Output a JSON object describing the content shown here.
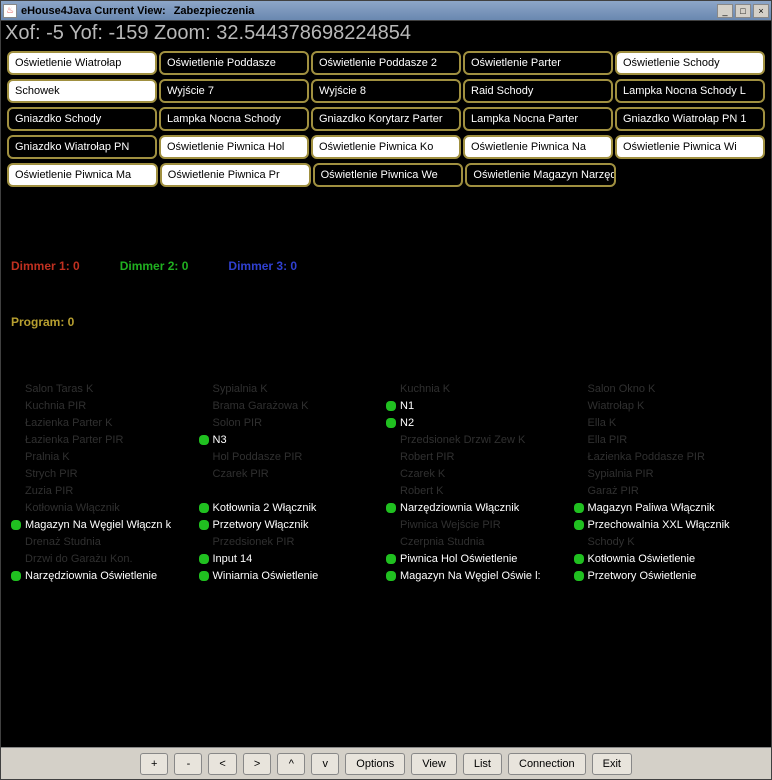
{
  "window": {
    "title_left": "eHouse4Java Current View:",
    "title_right": "Zabezpieczenia"
  },
  "status": {
    "xof_label": "Xof:",
    "xof": "-5",
    "yof_label": "Yof:",
    "yof": "-159",
    "zoom_label": "Zoom:",
    "zoom": "32.544378698224854"
  },
  "grid": {
    "rows": [
      [
        {
          "label": "Oświetlenie Wiatrołap",
          "inverted": true
        },
        {
          "label": "Oświetlenie Poddasze",
          "inverted": false
        },
        {
          "label": "Oświetlenie Poddasze 2",
          "inverted": false
        },
        {
          "label": "Oświetlenie Parter",
          "inverted": false
        },
        {
          "label": "Oświetlenie Schody",
          "inverted": true
        }
      ],
      [
        {
          "label": "Schowek",
          "inverted": true
        },
        {
          "label": "Wyjście 7",
          "inverted": false
        },
        {
          "label": "Wyjście 8",
          "inverted": false
        },
        {
          "label": "Raid Schody",
          "inverted": false
        },
        {
          "label": "Lampka Nocna Schody L",
          "inverted": false
        }
      ],
      [
        {
          "label": "Gniazdko Schody",
          "inverted": false
        },
        {
          "label": "Lampka Nocna Schody",
          "inverted": false
        },
        {
          "label": "Gniazdko Korytarz Parter",
          "inverted": false
        },
        {
          "label": "Lampka Nocna Parter",
          "inverted": false
        },
        {
          "label": "Gniazdko Wiatrołap PN 1",
          "inverted": false
        }
      ],
      [
        {
          "label": "Gniazdko Wiatrołap PN",
          "inverted": false
        },
        {
          "label": "Oświetlenie Piwnica Hol",
          "inverted": true
        },
        {
          "label": "Oświetlenie Piwnica Ko",
          "inverted": true
        },
        {
          "label": "Oświetlenie Piwnica Na",
          "inverted": true
        },
        {
          "label": "Oświetlenie Piwnica Wi",
          "inverted": true
        }
      ],
      [
        {
          "label": "Oświetlenie Piwnica Ma",
          "inverted": true
        },
        {
          "label": "Oświetlenie Piwnica Pr",
          "inverted": true
        },
        {
          "label": "Oświetlenie Piwnica We",
          "inverted": false
        },
        {
          "label": "Oświetlenie Magazyn Narzędzia",
          "inverted": false
        },
        {
          "label": "",
          "empty": true
        }
      ]
    ]
  },
  "dimmers": {
    "d1": "Dimmer 1: 0",
    "d2": "Dimmer 2: 0",
    "d3": "Dimmer 3: 0"
  },
  "program": "Program: 0",
  "sensors": {
    "columns": [
      [
        {
          "label": "Salon Taras K",
          "dot": false,
          "bright": false
        },
        {
          "label": "Kuchnia PIR",
          "dot": false,
          "bright": false
        },
        {
          "label": "Łazienka Parter K",
          "dot": false,
          "bright": false
        },
        {
          "label": "Łazienka Parter PIR",
          "dot": false,
          "bright": false
        },
        {
          "label": "Pralnia K",
          "dot": false,
          "bright": false
        },
        {
          "label": "Strych PIR",
          "dot": false,
          "bright": false
        },
        {
          "label": "Zuzia PIR",
          "dot": false,
          "bright": false
        },
        {
          "label": "Kotłownia Włącznik",
          "dot": false,
          "bright": false
        },
        {
          "label": "Magazyn Na Węgiel Włączn k",
          "dot": true,
          "bright": true
        },
        {
          "label": "Drenaż Studnia",
          "dot": false,
          "bright": false
        },
        {
          "label": "Drzwi do Garażu Kon.",
          "dot": false,
          "bright": false
        },
        {
          "label": "Narzędziownia Oświetlenie",
          "dot": true,
          "bright": true
        }
      ],
      [
        {
          "label": "Sypialnia K",
          "dot": false,
          "bright": false
        },
        {
          "label": "Brama Garażowa K",
          "dot": false,
          "bright": false
        },
        {
          "label": "Solon PIR",
          "dot": false,
          "bright": false
        },
        {
          "label": "N3",
          "dot": true,
          "bright": true
        },
        {
          "label": "Hol Poddasze PIR",
          "dot": false,
          "bright": false
        },
        {
          "label": "Czarek PIR",
          "dot": false,
          "bright": false
        },
        {
          "label": "",
          "dot": false,
          "bright": false
        },
        {
          "label": "Kotłownia 2 Włącznik",
          "dot": true,
          "bright": true
        },
        {
          "label": "Przetwory Włącznik",
          "dot": true,
          "bright": true
        },
        {
          "label": "Przedsionek PIR",
          "dot": false,
          "bright": false
        },
        {
          "label": "Input 14",
          "dot": true,
          "bright": true
        },
        {
          "label": "Winiarnia Oświetlenie",
          "dot": true,
          "bright": true
        }
      ],
      [
        {
          "label": "Kuchnia K",
          "dot": false,
          "bright": false
        },
        {
          "label": "N1",
          "dot": true,
          "bright": true
        },
        {
          "label": "N2",
          "dot": true,
          "bright": true
        },
        {
          "label": "Przedsionek Drzwi Zew K",
          "dot": false,
          "bright": false
        },
        {
          "label": "Robert PIR",
          "dot": false,
          "bright": false
        },
        {
          "label": "Czarek K",
          "dot": false,
          "bright": false
        },
        {
          "label": "Robert K",
          "dot": false,
          "bright": false
        },
        {
          "label": "Narzędziownia Włącznik",
          "dot": true,
          "bright": true
        },
        {
          "label": "Piwnica Wejście PIR",
          "dot": false,
          "bright": false
        },
        {
          "label": "Czerpnia Studnia",
          "dot": false,
          "bright": false
        },
        {
          "label": "Piwnica Hol Oświetlenie",
          "dot": true,
          "bright": true
        },
        {
          "label": "Magazyn Na Węgiel Oświe l:",
          "dot": true,
          "bright": true
        }
      ],
      [
        {
          "label": "Salon Okno K",
          "dot": false,
          "bright": false
        },
        {
          "label": "Wiatrołap K",
          "dot": false,
          "bright": false
        },
        {
          "label": "Ella K",
          "dot": false,
          "bright": false
        },
        {
          "label": "Ella PIR",
          "dot": false,
          "bright": false
        },
        {
          "label": "Łazienka Poddasze PIR",
          "dot": false,
          "bright": false
        },
        {
          "label": "Sypialnia PIR",
          "dot": false,
          "bright": false
        },
        {
          "label": "Garaż PIR",
          "dot": false,
          "bright": false
        },
        {
          "label": "Magazyn Paliwa Włącznik",
          "dot": true,
          "bright": true
        },
        {
          "label": "Przechowalnia XXL Włącznik",
          "dot": true,
          "bright": true
        },
        {
          "label": "Schody K",
          "dot": false,
          "bright": false
        },
        {
          "label": "Kotłownia Oświetlenie",
          "dot": true,
          "bright": true
        },
        {
          "label": "Przetwory Oświetlenie",
          "dot": true,
          "bright": true
        }
      ]
    ]
  },
  "bottom": {
    "plus": "+",
    "minus": "-",
    "left": "<",
    "right": ">",
    "up": "^",
    "down": "v",
    "options": "Options",
    "view": "View",
    "list": "List",
    "connection": "Connection",
    "exit": "Exit"
  },
  "colors": {
    "accent_border": "#a09040",
    "bg": "#000000",
    "status_text": "#b8b8b8",
    "dimmer1": "#c03020",
    "dimmer2": "#20b020",
    "dimmer3": "#3040d0",
    "program": "#b8a030",
    "dot_green": "#20c020",
    "sensor_dim": "#303030"
  }
}
